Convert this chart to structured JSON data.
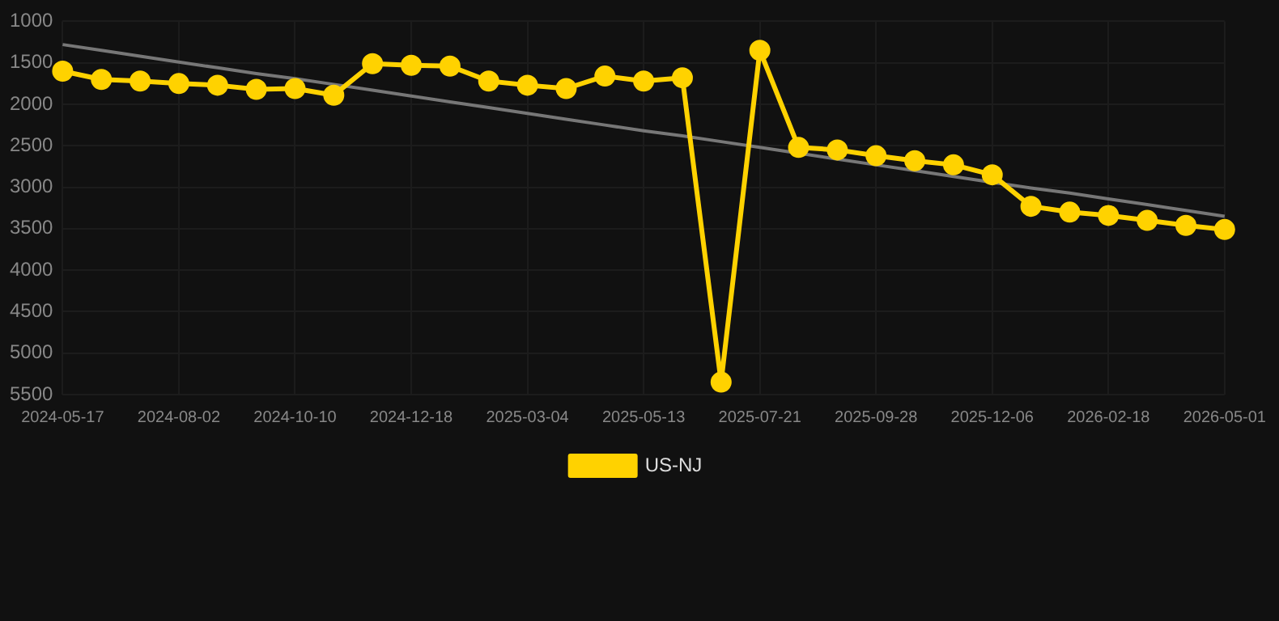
{
  "chart_data": {
    "type": "line",
    "categories": [
      "2024-05-17",
      null,
      null,
      "2024-08-02",
      null,
      null,
      "2024-10-10",
      null,
      null,
      "2024-12-18",
      null,
      null,
      "2025-03-04",
      null,
      null,
      "2025-05-13",
      null,
      null,
      "2025-07-21",
      null,
      null,
      "2025-09-28",
      null,
      null,
      "2025-12-06",
      null,
      null,
      "2026-02-18",
      null,
      null,
      "2026-05-01"
    ],
    "series": [
      {
        "name": "US-NJ",
        "color": "#ffd200",
        "marker": "circle",
        "values": [
          1600,
          1700,
          1720,
          1750,
          1770,
          1820,
          1810,
          1890,
          1510,
          1530,
          1540,
          1720,
          1770,
          1810,
          1660,
          1720,
          1680,
          5350,
          1350,
          2520,
          2550,
          2620,
          2680,
          2730,
          2850,
          3230,
          3300,
          3340,
          3400,
          3460,
          3510
        ]
      },
      {
        "type": "line",
        "color": "#777777",
        "marker": "none",
        "values": [
          1280,
          1350,
          1420,
          1490,
          1560,
          1630,
          1690,
          1760,
          1830,
          1900,
          1970,
          2040,
          2110,
          2180,
          2250,
          2320,
          2380,
          2450,
          2520,
          2590,
          2660,
          2730,
          2800,
          2870,
          2940,
          3010,
          3070,
          3140,
          3210,
          3280,
          3350
        ]
      }
    ],
    "ylim": [
      5500,
      1000
    ],
    "yticks": [
      1000,
      1500,
      2000,
      2500,
      3000,
      3500,
      4000,
      4500,
      5000,
      5500
    ],
    "grid": true,
    "legend": "bottom",
    "line_style": "solid"
  }
}
